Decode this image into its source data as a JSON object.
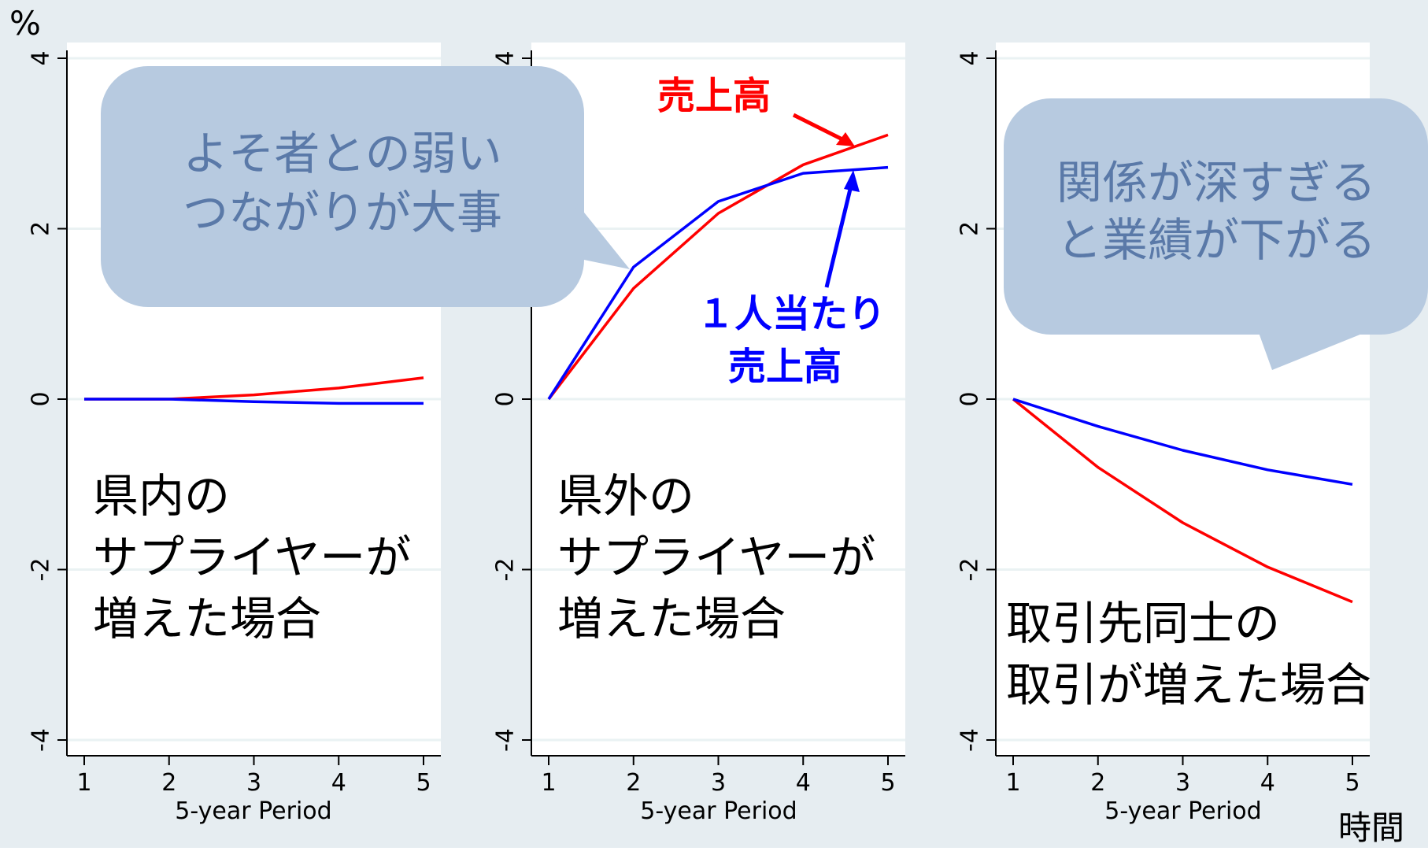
{
  "unit_label": "%",
  "time_label": "時間",
  "colors": {
    "series_1": "#ff0000",
    "series_2": "#0000ff",
    "background": "#e6edf1",
    "plot_bg": "#ffffff",
    "bubble": "#b7cae0",
    "bubble_text": "#5a79a8"
  },
  "chart_data": [
    {
      "type": "line",
      "xlabel": "5-year Period",
      "x": [
        1,
        2,
        3,
        4,
        5
      ],
      "xticks": [
        "1",
        "2",
        "3",
        "4",
        "5"
      ],
      "yticks": [
        "-4",
        "-2",
        "0",
        "2",
        "4"
      ],
      "ylim": [
        -4,
        4
      ],
      "grid": true,
      "series": [
        {
          "color": "#ff0000",
          "values": [
            0,
            0,
            0.05,
            0.13,
            0.25
          ]
        },
        {
          "color": "#0000ff",
          "values": [
            0,
            0,
            -0.03,
            -0.05,
            -0.05
          ]
        }
      ],
      "annotation": [
        "県内の",
        "サプライヤーが",
        "増えた場合"
      ]
    },
    {
      "type": "line",
      "xlabel": "5-year Period",
      "x": [
        1,
        2,
        3,
        4,
        5
      ],
      "xticks": [
        "1",
        "2",
        "3",
        "4",
        "5"
      ],
      "yticks": [
        "-4",
        "-2",
        "0",
        "2",
        "4"
      ],
      "ylim": [
        -4,
        4
      ],
      "grid": true,
      "series": [
        {
          "color": "#ff0000",
          "values": [
            0,
            1.3,
            2.18,
            2.75,
            3.1
          ]
        },
        {
          "color": "#0000ff",
          "values": [
            0,
            1.55,
            2.32,
            2.65,
            2.72
          ]
        }
      ],
      "annotation": [
        "県外の",
        "サプライヤーが",
        "増えた場合"
      ],
      "series_labels": {
        "red": [
          "売上高"
        ],
        "blue": [
          "１人当たり",
          "売上高"
        ]
      }
    },
    {
      "type": "line",
      "xlabel": "5-year Period",
      "x": [
        1,
        2,
        3,
        4,
        5
      ],
      "xticks": [
        "1",
        "2",
        "3",
        "4",
        "5"
      ],
      "yticks": [
        "-4",
        "-2",
        "0",
        "2",
        "4"
      ],
      "ylim": [
        -4,
        4
      ],
      "grid": true,
      "series": [
        {
          "color": "#ff0000",
          "values": [
            0,
            -0.8,
            -1.45,
            -1.97,
            -2.38
          ]
        },
        {
          "color": "#0000ff",
          "values": [
            0,
            -0.32,
            -0.6,
            -0.83,
            -1.0
          ]
        }
      ],
      "annotation": [
        "取引先同士の",
        "取引が増えた場合"
      ]
    }
  ],
  "callouts": [
    {
      "lines": [
        "よそ者との弱い",
        "つながりが大事"
      ]
    },
    {
      "lines": [
        "関係が深すぎる",
        "と業績が下がる"
      ]
    }
  ]
}
